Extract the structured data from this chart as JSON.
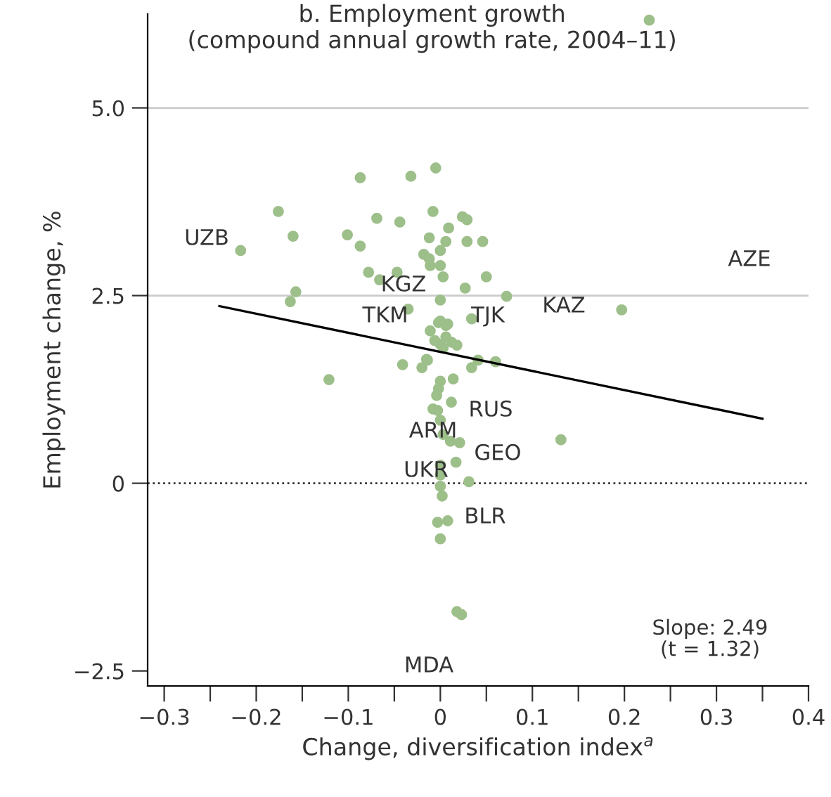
{
  "chart_data": {
    "type": "scatter",
    "title": "b. Employment growth\n(compound annual growth rate, 2004–11)",
    "xlabel": "Change, diversification index$^{a}$",
    "ylabel": "Employment change, %",
    "xlim": [
      -0.318,
      0.4
    ],
    "ylim": [
      -2.7,
      6.25
    ],
    "xticks": [
      {
        "value": -0.3,
        "label": "−0.3"
      },
      {
        "value": -0.25,
        "label": null
      },
      {
        "value": -0.2,
        "label": "−0.2"
      },
      {
        "value": -0.15,
        "label": null
      },
      {
        "value": -0.1,
        "label": "−0.1"
      },
      {
        "value": -0.05,
        "label": null
      },
      0,
      {
        "value": 0.05,
        "label": null
      },
      0.1,
      {
        "value": 0.15,
        "label": null
      },
      0.2,
      {
        "value": 0.25,
        "label": null
      },
      0.3,
      {
        "value": 0.35,
        "label": null
      },
      0.4
    ],
    "yticks": [
      {
        "value": -2.5,
        "label": "−2.5"
      },
      0,
      2.5,
      {
        "value": 5.0,
        "label": "5.0"
      }
    ],
    "grid": false,
    "ref_lines": [
      {
        "axis": "y",
        "value": 5.0,
        "label": null,
        "color": "#cccccc",
        "line_style": "solid"
      },
      {
        "axis": "y",
        "value": 2.5,
        "label": null,
        "color": "#cccccc",
        "line_style": "solid"
      },
      {
        "axis": "y",
        "value": 0,
        "label": null,
        "color": "#333333",
        "line_style": "dotted"
      }
    ],
    "series": [
      {
        "marker": "circle",
        "color": "#9dbf8a",
        "x": [
          -0.217,
          -0.176,
          -0.16,
          -0.157,
          -0.163,
          -0.087,
          -0.101,
          -0.087,
          -0.069,
          -0.044,
          -0.032,
          -0.005,
          -0.078,
          -0.066,
          -0.047,
          -0.008,
          0.009,
          0.006,
          -0.012,
          0.0,
          0.024,
          0.029,
          0.029,
          0.046,
          0.05,
          -0.018,
          -0.012,
          -0.011,
          0.0,
          0.003,
          0.027,
          0.0,
          -0.035,
          -0.002,
          0.008,
          0.034,
          -0.011,
          -0.006,
          0.0,
          0.006,
          0.012,
          0.003,
          0.018,
          -0.041,
          -0.015,
          0.072,
          0.0,
          0.006,
          0.041,
          0.06,
          0.034,
          -0.014,
          -0.02,
          -0.121,
          0.0,
          0.014,
          -0.002,
          -0.004,
          0.012,
          -0.008,
          -0.003,
          0.0,
          0.003,
          0.011,
          0.021,
          0.131,
          0.017,
          0.0,
          0.0,
          0.031,
          0.0,
          0.002,
          -0.003,
          0.008,
          0.0,
          0.018,
          0.023,
          0.197,
          0.227
        ],
        "values": [
          3.1,
          3.62,
          3.29,
          2.55,
          2.42,
          4.07,
          3.31,
          3.16,
          3.53,
          3.48,
          4.09,
          4.2,
          2.81,
          2.71,
          2.81,
          3.62,
          3.4,
          3.22,
          3.27,
          3.1,
          3.55,
          3.51,
          3.22,
          3.22,
          2.75,
          3.05,
          2.99,
          2.9,
          2.9,
          2.75,
          2.6,
          2.44,
          2.32,
          2.14,
          2.12,
          2.19,
          2.03,
          1.9,
          1.85,
          1.95,
          1.88,
          1.8,
          1.84,
          1.58,
          1.65,
          2.49,
          2.16,
          2.1,
          1.64,
          1.62,
          1.54,
          1.64,
          1.54,
          1.38,
          1.36,
          1.39,
          1.26,
          1.17,
          1.08,
          0.99,
          0.97,
          0.84,
          0.65,
          0.56,
          0.54,
          0.58,
          0.28,
          0.24,
          0.11,
          0.02,
          -0.04,
          -0.17,
          -0.52,
          -0.5,
          -0.74,
          -1.71,
          -1.75,
          2.31,
          6.17
        ]
      },
      {
        "type": "line",
        "marker": "none",
        "color": "#000000",
        "x": [
          -0.24,
          0.35
        ],
        "values": [
          2.36,
          0.86
        ]
      }
    ],
    "annotations": [
      "UZB",
      "KGZ",
      "TKM",
      "TJK",
      "KAZ",
      "AZE",
      "RUS",
      "ARM",
      "GEO",
      "UKR",
      "BLR",
      "MDA",
      "Slope: 2.49\n(t = 1.32)"
    ]
  }
}
